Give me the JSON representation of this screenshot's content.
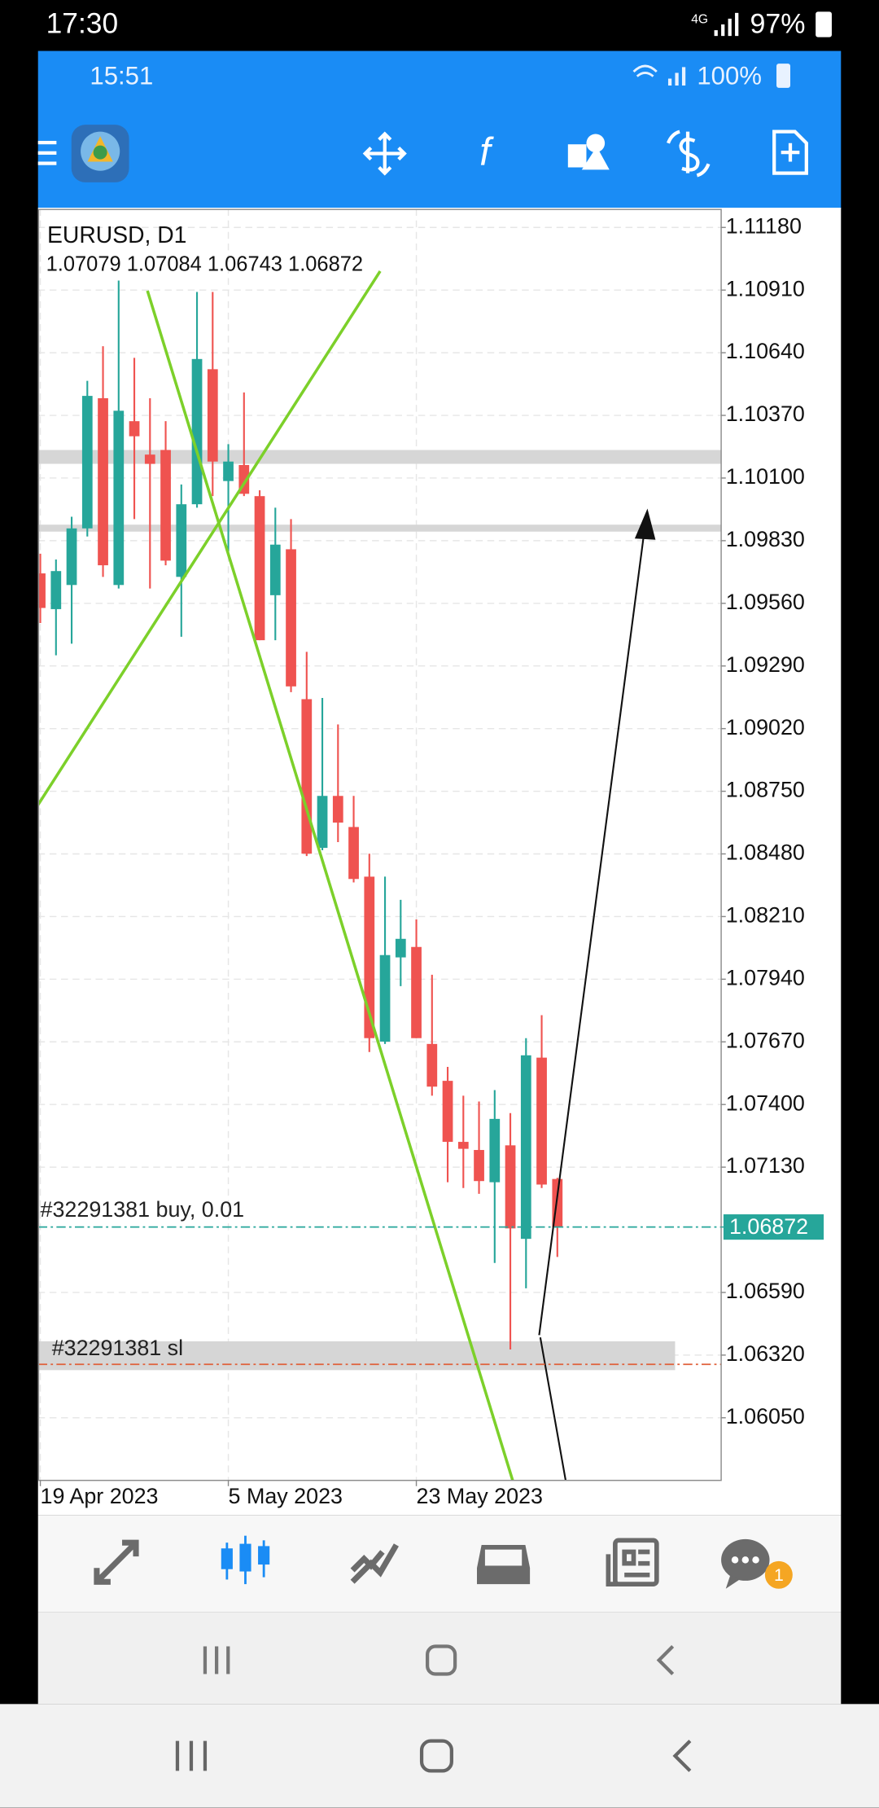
{
  "status_bar": {
    "time": "17:30",
    "network": "4G",
    "battery": "97%"
  },
  "app_status_bar": {
    "time": "15:51",
    "battery": "100%"
  },
  "chart_data": {
    "type": "candlestick",
    "title": "EURUSD, D1",
    "subtitle": "1.07079 1.07084 1.06743 1.06872",
    "categories": [
      "19 Apr 2023",
      null,
      null,
      null,
      null,
      null,
      null,
      null,
      null,
      null,
      null,
      null,
      "5 May 2023",
      null,
      null,
      null,
      null,
      null,
      null,
      null,
      null,
      null,
      null,
      null,
      "23 May 2023",
      null,
      null,
      null,
      null,
      null,
      null,
      null,
      null,
      null
    ],
    "open": [
      1.09689,
      1.09535,
      1.09639,
      1.09883,
      1.10444,
      1.09639,
      1.10345,
      1.10201,
      1.10221,
      1.09674,
      1.09987,
      1.10569,
      1.10087,
      1.10156,
      1.10022,
      1.09595,
      1.09793,
      1.09147,
      1.08506,
      1.0873,
      1.08596,
      1.08382,
      1.07671,
      1.08034,
      1.08079,
      1.07661,
      1.07502,
      1.07239,
      1.07204,
      1.07065,
      1.07224,
      1.06821,
      1.07602,
      1.07079
    ],
    "high": [
      1.09774,
      1.09749,
      1.09933,
      1.10519,
      1.10668,
      1.10951,
      1.10618,
      1.10444,
      1.10345,
      1.10072,
      1.10902,
      1.10902,
      1.10246,
      1.10469,
      1.10047,
      1.09972,
      1.09923,
      1.09351,
      1.09152,
      1.09038,
      1.0873,
      1.08481,
      1.08382,
      1.08282,
      1.08198,
      1.07959,
      1.07562,
      1.07438,
      1.07413,
      1.07462,
      1.07363,
      1.07686,
      1.07785,
      1.07084
    ],
    "low": [
      1.09475,
      1.09336,
      1.09386,
      1.09848,
      1.09674,
      1.09624,
      1.09923,
      1.09624,
      1.09724,
      1.09416,
      1.09972,
      1.10022,
      1.09783,
      1.10022,
      1.09401,
      1.09401,
      1.09177,
      1.08471,
      1.08496,
      1.08531,
      1.08357,
      1.07626,
      1.07661,
      1.0791,
      1.07686,
      1.07438,
      1.07065,
      1.0704,
      1.07015,
      1.06717,
      1.06344,
      1.06608,
      1.0704,
      1.06743
    ],
    "close": [
      1.0954,
      1.09699,
      1.09883,
      1.10454,
      1.09724,
      1.1039,
      1.1028,
      1.10161,
      1.09744,
      1.09987,
      1.10613,
      1.10171,
      1.10171,
      1.10032,
      1.09401,
      1.09813,
      1.09202,
      1.08481,
      1.0873,
      1.08615,
      1.08372,
      1.07686,
      1.08044,
      1.08114,
      1.07686,
      1.07477,
      1.07239,
      1.07209,
      1.0707,
      1.07338,
      1.06866,
      1.07612,
      1.07055,
      1.06872
    ],
    "up_color": "#26a69a",
    "down_color": "#ef5350",
    "ylim": [
      1.0578,
      1.1126
    ],
    "yticks": [
      {
        "value": 1.1118,
        "label": "1.11180"
      },
      {
        "value": 1.1091,
        "label": "1.10910"
      },
      {
        "value": 1.1064,
        "label": "1.10640"
      },
      {
        "value": 1.1037,
        "label": "1.10370"
      },
      {
        "value": 1.101,
        "label": "1.10100"
      },
      {
        "value": 1.0983,
        "label": "1.09830"
      },
      {
        "value": 1.0956,
        "label": "1.09560"
      },
      {
        "value": 1.0929,
        "label": "1.09290"
      },
      {
        "value": 1.0902,
        "label": "1.09020"
      },
      {
        "value": 1.0875,
        "label": "1.08750"
      },
      {
        "value": 1.0848,
        "label": "1.08480"
      },
      {
        "value": 1.0821,
        "label": "1.08210"
      },
      {
        "value": 1.0794,
        "label": "1.07940"
      },
      {
        "value": 1.0767,
        "label": "1.07670"
      },
      {
        "value": 1.074,
        "label": "1.07400"
      },
      {
        "value": 1.0713,
        "label": "1.07130"
      },
      {
        "value": 1.0659,
        "label": "1.06590"
      },
      {
        "value": 1.0632,
        "label": "1.06320"
      },
      {
        "value": 1.0605,
        "label": "1.06050"
      }
    ],
    "grid": true,
    "zones": [
      1.10191,
      1.09884
    ],
    "current_price": 1.06872,
    "orders": [
      {
        "label": "#32291381 buy, 0.01",
        "price": 1.06872,
        "color": "#26a69a"
      },
      {
        "label": "#32291381 sl",
        "price": 1.0628,
        "color": "#e0603a"
      }
    ]
  },
  "bottom_nav": {
    "chat_badge": 1
  }
}
